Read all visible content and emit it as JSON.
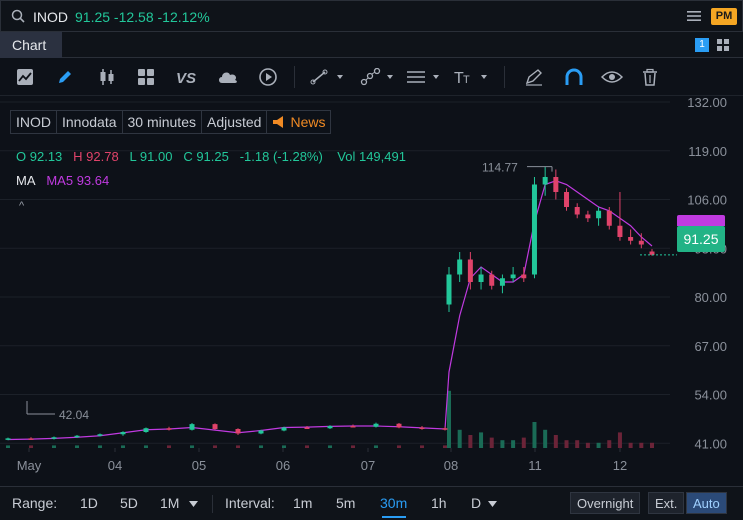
{
  "topbar": {
    "ticker": "INOD",
    "quote": "91.25 -12.58 -12.12%",
    "pm_badge": "PM"
  },
  "tabbar": {
    "tab_label": "Chart",
    "window_badge": "1"
  },
  "toolbar": {
    "icons": [
      "chart-type-icon",
      "draw-icon",
      "candlestick-icon",
      "grid-icon",
      "compare-icon",
      "cloud-icon",
      "replay-icon",
      "line-tool-icon",
      "node-tool-icon",
      "fib-tool-icon",
      "text-tool-icon",
      "brush-icon",
      "magnet-icon",
      "eye-icon",
      "trash-icon"
    ]
  },
  "legend": {
    "symbol": "INOD",
    "name": "Innodata",
    "interval": "30 minutes",
    "adjusted": "Adjusted",
    "news": "News",
    "o_label": "O",
    "o_value": "92.13",
    "h_label": "H",
    "h_value": "92.78",
    "l_label": "L",
    "l_value": "91.00",
    "c_label": "C",
    "c_value": "91.25",
    "change": "-1.18 (-1.28%)",
    "vol_label": "Vol",
    "vol_value": "149,491",
    "ma_label": "MA",
    "ma_name": "MA5",
    "ma_value": "93.64",
    "collapse": "^"
  },
  "price_tag": "91.25",
  "colors": {
    "up": "#22c79a",
    "down": "#e0436a",
    "ma": "#c03ae0",
    "accent": "#2a9df4",
    "pm": "#f5a623"
  },
  "chart_data": {
    "type": "candlestick",
    "y_ticks": [
      "132.00",
      "119.00",
      "106.00",
      "93.00",
      "80.00",
      "67.00",
      "54.00",
      "41.00"
    ],
    "x_ticks": [
      "May",
      "04",
      "05",
      "06",
      "07",
      "08",
      "11",
      "12"
    ],
    "ylim": [
      28,
      132
    ],
    "high_label": "114.77",
    "low_label": "42.04",
    "series": [
      {
        "name": "MA5",
        "values": [
          42.0,
          42.1,
          42.3,
          42.6,
          43.0,
          43.8,
          44.6,
          44.8,
          45.2,
          44.5,
          43.8,
          44.4,
          45.2,
          45.3,
          45.5,
          45.6,
          45.6,
          45.4,
          45.1,
          44.8,
          60,
          75,
          85,
          88,
          86,
          84,
          84,
          86,
          100,
          110,
          111,
          110,
          108,
          106,
          104,
          103,
          101,
          99,
          96,
          93.6
        ]
      }
    ],
    "candles": [
      [
        42.0,
        42.5,
        41.8,
        42.3
      ],
      [
        42.3,
        42.6,
        42.0,
        42.2
      ],
      [
        42.2,
        42.8,
        42.0,
        42.6
      ],
      [
        42.6,
        43.2,
        42.4,
        43.0
      ],
      [
        43.0,
        43.6,
        42.8,
        43.4
      ],
      [
        43.4,
        44.2,
        43.0,
        44.0
      ],
      [
        44.0,
        45.2,
        43.8,
        45.0
      ],
      [
        45.0,
        45.4,
        44.4,
        44.6
      ],
      [
        44.6,
        46.4,
        44.4,
        46.1
      ],
      [
        46.1,
        46.3,
        44.6,
        44.8
      ],
      [
        44.8,
        45.0,
        43.2,
        43.6
      ],
      [
        43.6,
        44.6,
        43.4,
        44.4
      ],
      [
        44.4,
        45.4,
        44.2,
        45.2
      ],
      [
        45.2,
        45.6,
        44.8,
        45.0
      ],
      [
        45.0,
        45.8,
        44.8,
        45.6
      ],
      [
        45.6,
        46.0,
        45.2,
        45.4
      ],
      [
        45.4,
        46.5,
        45.2,
        46.2
      ],
      [
        46.2,
        46.4,
        45.0,
        45.2
      ],
      [
        45.2,
        45.6,
        44.6,
        45.0
      ],
      [
        45.0,
        45.4,
        44.4,
        44.8
      ],
      [
        78,
        88,
        76,
        86
      ],
      [
        86,
        92,
        84,
        90
      ],
      [
        90,
        92,
        82,
        84
      ],
      [
        84,
        88,
        82,
        86
      ],
      [
        86,
        87,
        82,
        83
      ],
      [
        83,
        86,
        81,
        85
      ],
      [
        85,
        88,
        84,
        86
      ],
      [
        86,
        88,
        84,
        85
      ],
      [
        86,
        112,
        85,
        110
      ],
      [
        110,
        114.77,
        107,
        112
      ],
      [
        112,
        114,
        106,
        108
      ],
      [
        108,
        109,
        103,
        104
      ],
      [
        104,
        105,
        101,
        102
      ],
      [
        102,
        103,
        100,
        101
      ],
      [
        101,
        104,
        99,
        103
      ],
      [
        103,
        104,
        98,
        99
      ],
      [
        99,
        108,
        95,
        96
      ],
      [
        96,
        98,
        94,
        95
      ],
      [
        95,
        97,
        93,
        94
      ],
      [
        92.13,
        92.78,
        91.0,
        91.25
      ]
    ],
    "volume": [
      1,
      1,
      1,
      1,
      1,
      1,
      1,
      1,
      1,
      1,
      1,
      1,
      1,
      1,
      1,
      1,
      1,
      1,
      1,
      1,
      22,
      7,
      5,
      6,
      4,
      3,
      3,
      4,
      10,
      7,
      5,
      3,
      3,
      2,
      2,
      3,
      6,
      2,
      2,
      2
    ]
  },
  "bottombar": {
    "range_label": "Range:",
    "ranges": [
      "1D",
      "5D",
      "1M"
    ],
    "interval_label": "Interval:",
    "intervals": [
      "1m",
      "5m",
      "30m",
      "1h",
      "D"
    ],
    "active_interval": "30m",
    "overnight": "Overnight",
    "ext": "Ext.",
    "auto": "Auto"
  }
}
